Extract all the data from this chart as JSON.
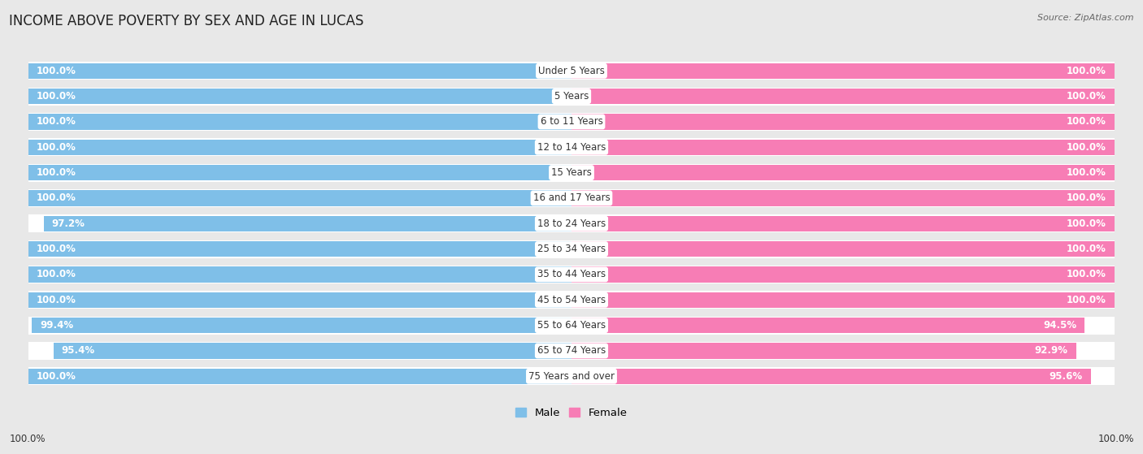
{
  "title": "INCOME ABOVE POVERTY BY SEX AND AGE IN LUCAS",
  "source": "Source: ZipAtlas.com",
  "categories": [
    "Under 5 Years",
    "5 Years",
    "6 to 11 Years",
    "12 to 14 Years",
    "15 Years",
    "16 and 17 Years",
    "18 to 24 Years",
    "25 to 34 Years",
    "35 to 44 Years",
    "45 to 54 Years",
    "55 to 64 Years",
    "65 to 74 Years",
    "75 Years and over"
  ],
  "male_values": [
    100.0,
    100.0,
    100.0,
    100.0,
    100.0,
    100.0,
    97.2,
    100.0,
    100.0,
    100.0,
    99.4,
    95.4,
    100.0
  ],
  "female_values": [
    100.0,
    100.0,
    100.0,
    100.0,
    100.0,
    100.0,
    100.0,
    100.0,
    100.0,
    100.0,
    94.5,
    92.9,
    95.6
  ],
  "male_color": "#7fbfe8",
  "female_color": "#f77db5",
  "background_color": "#e8e8e8",
  "bar_bg_color": "#ffffff",
  "title_fontsize": 12,
  "label_fontsize": 8.5,
  "cat_fontsize": 8.5,
  "legend_male": "Male",
  "legend_female": "Female"
}
